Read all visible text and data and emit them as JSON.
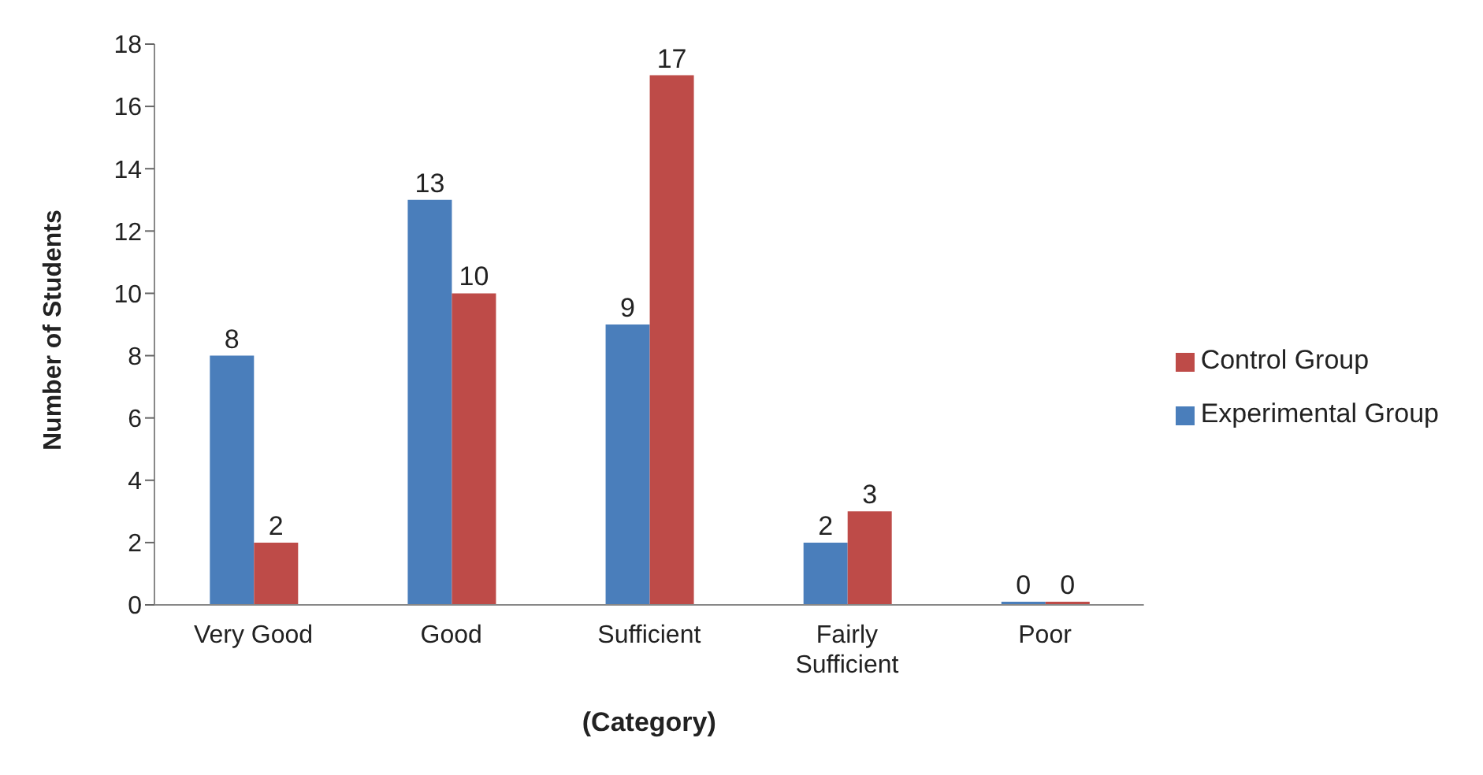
{
  "chart_data": {
    "type": "bar",
    "xlabel": "(Category)",
    "ylabel": "Number of Students",
    "categories": [
      "Very Good",
      "Good",
      "Sufficient",
      "Fairly Sufficient",
      "Poor"
    ],
    "series": [
      {
        "name": "Experimental Group",
        "color": "#4a7ebb",
        "values": [
          8,
          13,
          9,
          2,
          0
        ]
      },
      {
        "name": "Control Group",
        "color": "#be4b48",
        "values": [
          2,
          10,
          17,
          3,
          0
        ]
      }
    ],
    "ylim": [
      0,
      18
    ],
    "yticks": [
      0,
      2,
      4,
      6,
      8,
      10,
      12,
      14,
      16,
      18
    ],
    "grid": false,
    "legend": "right",
    "data_labels": true
  }
}
